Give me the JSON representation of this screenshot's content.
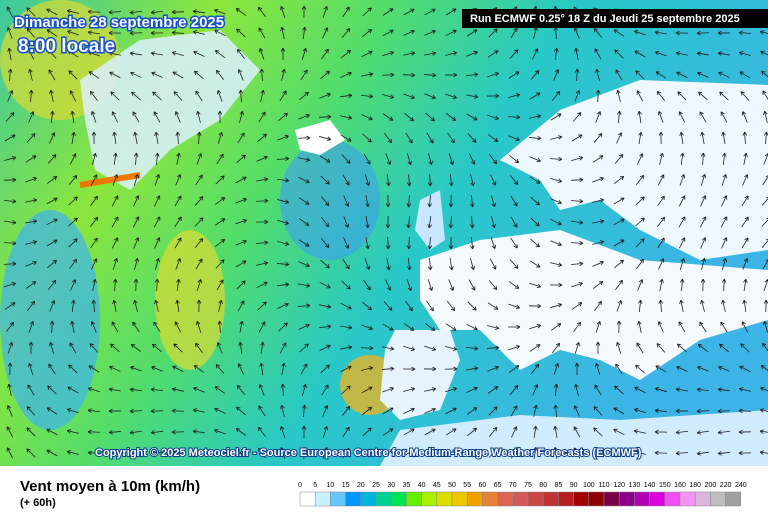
{
  "header": {
    "date": "Dimanche 28 septembre 2025",
    "time": "8:00 locale",
    "run": "Run ECMWF 0.25° 18 Z du Jeudi 25 septembre 2025"
  },
  "copyright": "Copyright © 2025 Meteociel.fr - Source European Centre for Medium-Range Weather Forecasts (ECMWF)",
  "footer": {
    "title": "Vent moyen à 10m (km/h)",
    "lead": "(+ 60h)"
  },
  "scale": {
    "ticks": [
      0,
      5,
      10,
      15,
      20,
      25,
      30,
      35,
      40,
      45,
      50,
      55,
      60,
      65,
      70,
      75,
      80,
      85,
      90,
      100,
      110,
      120,
      130,
      140,
      150,
      160,
      180,
      200,
      220,
      240
    ],
    "colors": [
      "#ffffff",
      "#c8f0ff",
      "#64c8ff",
      "#0096ff",
      "#00b4dc",
      "#00d296",
      "#00e650",
      "#64f000",
      "#aaf000",
      "#dcdc00",
      "#f0c800",
      "#f0a000",
      "#e68232",
      "#dc6450",
      "#d25a5a",
      "#c84646",
      "#be3232",
      "#b41e1e",
      "#a00000",
      "#8c0000",
      "#780046",
      "#8c008c",
      "#b400b4",
      "#dc00dc",
      "#f050f0",
      "#f096f0",
      "#dcb4dc",
      "#bebebe",
      "#a0a0a0"
    ]
  }
}
